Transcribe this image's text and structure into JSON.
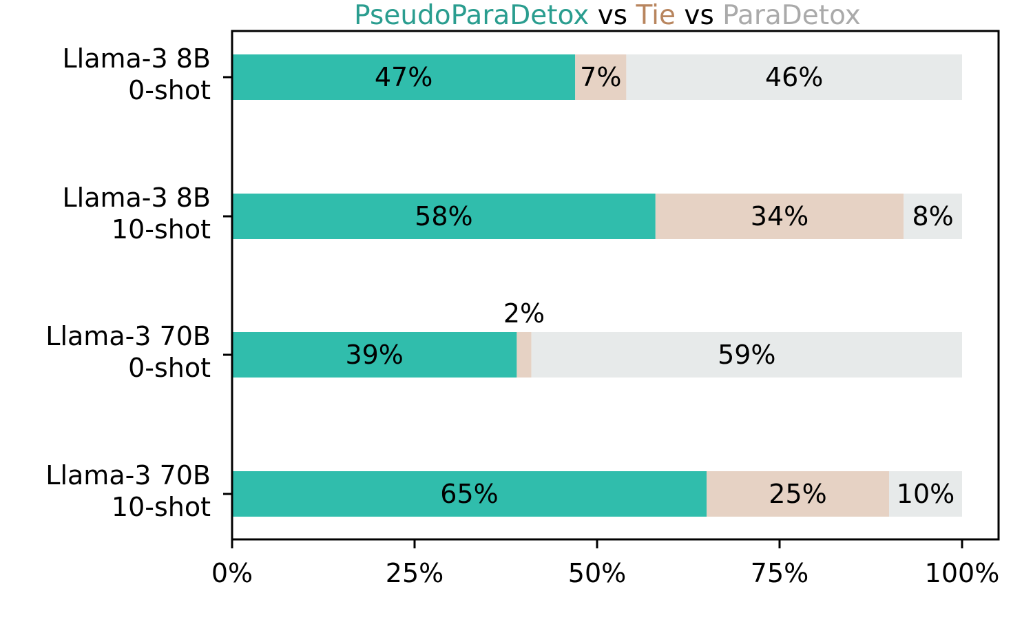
{
  "chart_data": {
    "type": "bar",
    "orientation": "horizontal",
    "stacked": true,
    "title_parts": [
      {
        "text": "PseudoParaDetox",
        "color": "#2a9d8f"
      },
      {
        "text": "vs",
        "color": "#000000"
      },
      {
        "text": "Tie",
        "color": "#b8855e"
      },
      {
        "text": "vs",
        "color": "#000000"
      },
      {
        "text": "ParaDetox",
        "color": "#aaaaaa"
      }
    ],
    "categories": [
      [
        "Llama-3 8B",
        "0-shot"
      ],
      [
        "Llama-3 8B",
        "10-shot"
      ],
      [
        "Llama-3 70B",
        "0-shot"
      ],
      [
        "Llama-3 70B",
        "10-shot"
      ]
    ],
    "series": [
      {
        "color": "#30bdac",
        "values": [
          47,
          58,
          39,
          65
        ],
        "labels": [
          "47%",
          "58%",
          "39%",
          "65%"
        ]
      },
      {
        "color": "#e6d2c4",
        "values": [
          7,
          34,
          2,
          25
        ],
        "labels": [
          "7%",
          "34%",
          "2%",
          "25%"
        ]
      },
      {
        "color": "#e7eaea",
        "values": [
          46,
          8,
          59,
          10
        ],
        "labels": [
          "46%",
          "8%",
          "59%",
          "10%"
        ]
      }
    ],
    "xlim": [
      0,
      105
    ],
    "xticks": [
      0,
      25,
      50,
      75,
      100
    ],
    "xtick_labels": [
      "0%",
      "25%",
      "50%",
      "75%",
      "100%"
    ],
    "xlabel": "",
    "ylabel": "",
    "grid": false,
    "legend": "none"
  }
}
